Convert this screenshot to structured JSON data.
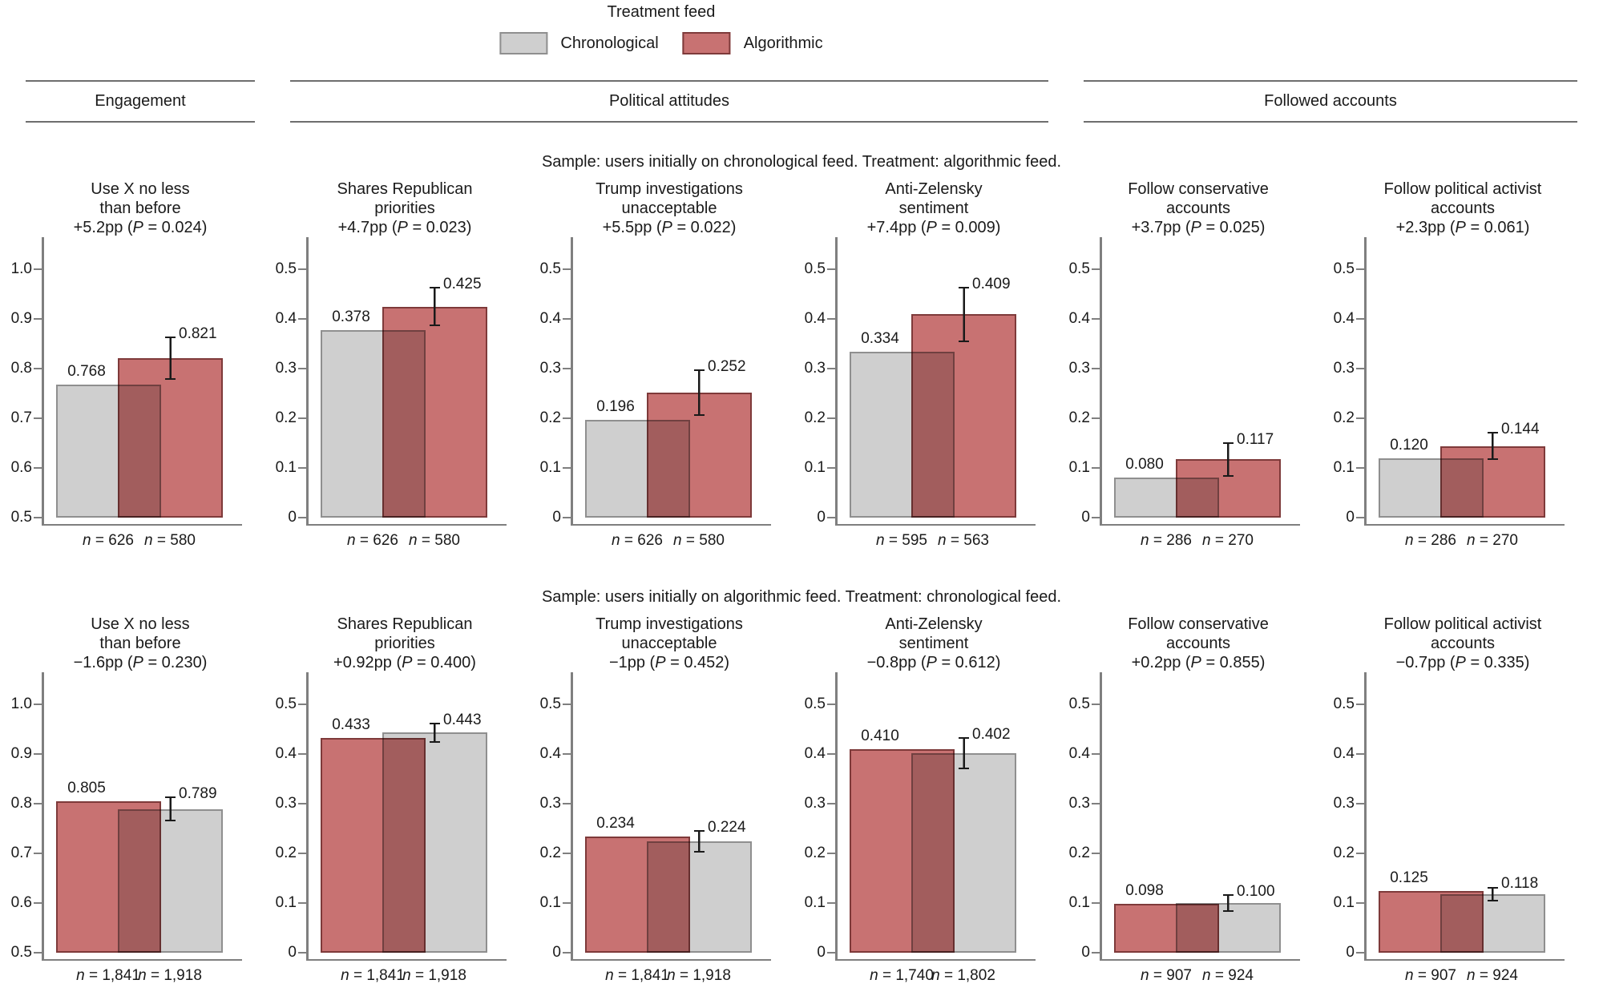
{
  "chart_data": {
    "type": "bar",
    "style": "grouped overlapping bars with error bar on treatment bar",
    "legend": {
      "title": "Treatment feed",
      "items": [
        {
          "key": "chronological",
          "label": "Chronological",
          "color": "#cfcfcf",
          "border": "#8f8f8f"
        },
        {
          "key": "algorithmic",
          "label": "Algorithmic",
          "color": "#c87272",
          "border": "#7e3a3a"
        }
      ]
    },
    "group_headers": [
      {
        "label": "Engagement",
        "span": 1
      },
      {
        "label": "Political attitudes",
        "span": 3
      },
      {
        "label": "Followed accounts",
        "span": 2
      }
    ],
    "axis_color": "#7f7f7f",
    "rows": [
      {
        "caption": "Sample: users initially on chronological feed. Treatment: algorithmic feed.",
        "charts": [
          {
            "title_lines": [
              "Use X no less",
              "than before"
            ],
            "effect": {
              "pre": "+5.2pp (",
              "sym": "P",
              "rest": " = 0.024)"
            },
            "ylim": [
              0.5,
              1.0
            ],
            "yticks": [
              "1.0",
              "0.9",
              "0.8",
              "0.7",
              "0.6",
              "0.5"
            ],
            "bars": [
              {
                "group": "chronological",
                "value": 0.768,
                "label": "0.768",
                "n_sym": "n",
                "n_rest": " = 626"
              },
              {
                "group": "algorithmic",
                "value": 0.821,
                "label": "0.821",
                "ci": 0.043,
                "n_sym": "n",
                "n_rest": " = 580"
              }
            ]
          },
          {
            "title_lines": [
              "Shares Republican",
              "priorities"
            ],
            "effect": {
              "pre": "+4.7pp (",
              "sym": "P",
              "rest": " = 0.023)"
            },
            "ylim": [
              0,
              0.5
            ],
            "yticks": [
              "0.5",
              "0.4",
              "0.3",
              "0.2",
              "0.1",
              "0"
            ],
            "bars": [
              {
                "group": "chronological",
                "value": 0.378,
                "label": "0.378",
                "n_sym": "n",
                "n_rest": " = 626"
              },
              {
                "group": "algorithmic",
                "value": 0.425,
                "label": "0.425",
                "ci": 0.04,
                "n_sym": "n",
                "n_rest": " = 580"
              }
            ]
          },
          {
            "title_lines": [
              "Trump investigations",
              "unacceptable"
            ],
            "effect": {
              "pre": "+5.5pp (",
              "sym": "P",
              "rest": " = 0.022)"
            },
            "ylim": [
              0,
              0.5
            ],
            "yticks": [
              "0.5",
              "0.4",
              "0.3",
              "0.2",
              "0.1",
              "0"
            ],
            "bars": [
              {
                "group": "chronological",
                "value": 0.196,
                "label": "0.196",
                "n_sym": "n",
                "n_rest": " = 626"
              },
              {
                "group": "algorithmic",
                "value": 0.252,
                "label": "0.252",
                "ci": 0.047,
                "n_sym": "n",
                "n_rest": " = 580"
              }
            ]
          },
          {
            "title_lines": [
              "Anti-Zelensky",
              "sentiment"
            ],
            "effect": {
              "pre": "+7.4pp (",
              "sym": "P",
              "rest": " = 0.009)"
            },
            "ylim": [
              0,
              0.5
            ],
            "yticks": [
              "0.5",
              "0.4",
              "0.3",
              "0.2",
              "0.1",
              "0"
            ],
            "bars": [
              {
                "group": "chronological",
                "value": 0.334,
                "label": "0.334",
                "n_sym": "n",
                "n_rest": " = 595"
              },
              {
                "group": "algorithmic",
                "value": 0.409,
                "label": "0.409",
                "ci": 0.055,
                "n_sym": "n",
                "n_rest": " = 563"
              }
            ]
          },
          {
            "title_lines": [
              "Follow conservative",
              "accounts"
            ],
            "effect": {
              "pre": "+3.7pp (",
              "sym": "P",
              "rest": " = 0.025)"
            },
            "ylim": [
              0,
              0.5
            ],
            "yticks": [
              "0.5",
              "0.4",
              "0.3",
              "0.2",
              "0.1",
              "0"
            ],
            "bars": [
              {
                "group": "chronological",
                "value": 0.08,
                "label": "0.080",
                "n_sym": "n",
                "n_rest": " = 286"
              },
              {
                "group": "algorithmic",
                "value": 0.117,
                "label": "0.117",
                "ci": 0.034,
                "n_sym": "n",
                "n_rest": " = 270"
              }
            ]
          },
          {
            "title_lines": [
              "Follow political activist",
              "accounts"
            ],
            "effect": {
              "pre": "+2.3pp (",
              "sym": "P",
              "rest": " = 0.061)"
            },
            "ylim": [
              0,
              0.5
            ],
            "yticks": [
              "0.5",
              "0.4",
              "0.3",
              "0.2",
              "0.1",
              "0"
            ],
            "bars": [
              {
                "group": "chronological",
                "value": 0.12,
                "label": "0.120",
                "n_sym": "n",
                "n_rest": " = 286"
              },
              {
                "group": "algorithmic",
                "value": 0.144,
                "label": "0.144",
                "ci": 0.028,
                "n_sym": "n",
                "n_rest": " = 270"
              }
            ]
          }
        ]
      },
      {
        "caption": "Sample: users initially on algorithmic feed. Treatment: chronological feed.",
        "charts": [
          {
            "title_lines": [
              "Use X no less",
              "than before"
            ],
            "effect": {
              "pre": "−1.6pp (",
              "sym": "P",
              "rest": " = 0.230)"
            },
            "ylim": [
              0.5,
              1.0
            ],
            "yticks": [
              "1.0",
              "0.9",
              "0.8",
              "0.7",
              "0.6",
              "0.5"
            ],
            "bars": [
              {
                "group": "algorithmic",
                "value": 0.805,
                "label": "0.805",
                "n_sym": "n",
                "n_rest": " = 1,841"
              },
              {
                "group": "chronological",
                "value": 0.789,
                "label": "0.789",
                "ci": 0.025,
                "n_sym": "n",
                "n_rest": " = 1,918"
              }
            ]
          },
          {
            "title_lines": [
              "Shares Republican",
              "priorities"
            ],
            "effect": {
              "pre": "+0.92pp (",
              "sym": "P",
              "rest": " = 0.400)"
            },
            "ylim": [
              0,
              0.5
            ],
            "yticks": [
              "0.5",
              "0.4",
              "0.3",
              "0.2",
              "0.1",
              "0"
            ],
            "bars": [
              {
                "group": "algorithmic",
                "value": 0.433,
                "label": "0.433",
                "n_sym": "n",
                "n_rest": " = 1,841"
              },
              {
                "group": "chronological",
                "value": 0.443,
                "label": "0.443",
                "ci": 0.02,
                "n_sym": "n",
                "n_rest": " = 1,918"
              }
            ]
          },
          {
            "title_lines": [
              "Trump investigations",
              "unacceptable"
            ],
            "effect": {
              "pre": "−1pp (",
              "sym": "P",
              "rest": " = 0.452)"
            },
            "ylim": [
              0,
              0.5
            ],
            "yticks": [
              "0.5",
              "0.4",
              "0.3",
              "0.2",
              "0.1",
              "0"
            ],
            "bars": [
              {
                "group": "algorithmic",
                "value": 0.234,
                "label": "0.234",
                "n_sym": "n",
                "n_rest": " = 1,841"
              },
              {
                "group": "chronological",
                "value": 0.224,
                "label": "0.224",
                "ci": 0.023,
                "n_sym": "n",
                "n_rest": " = 1,918"
              }
            ]
          },
          {
            "title_lines": [
              "Anti-Zelensky",
              "sentiment"
            ],
            "effect": {
              "pre": "−0.8pp (",
              "sym": "P",
              "rest": " = 0.612)"
            },
            "ylim": [
              0,
              0.5
            ],
            "yticks": [
              "0.5",
              "0.4",
              "0.3",
              "0.2",
              "0.1",
              "0"
            ],
            "bars": [
              {
                "group": "algorithmic",
                "value": 0.41,
                "label": "0.410",
                "n_sym": "n",
                "n_rest": " = 1,740"
              },
              {
                "group": "chronological",
                "value": 0.402,
                "label": "0.402",
                "ci": 0.032,
                "n_sym": "n",
                "n_rest": " = 1,802"
              }
            ]
          },
          {
            "title_lines": [
              "Follow conservative",
              "accounts"
            ],
            "effect": {
              "pre": "+0.2pp (",
              "sym": "P",
              "rest": " = 0.855)"
            },
            "ylim": [
              0,
              0.5
            ],
            "yticks": [
              "0.5",
              "0.4",
              "0.3",
              "0.2",
              "0.1",
              "0"
            ],
            "bars": [
              {
                "group": "algorithmic",
                "value": 0.098,
                "label": "0.098",
                "n_sym": "n",
                "n_rest": " = 907"
              },
              {
                "group": "chronological",
                "value": 0.1,
                "label": "0.100",
                "ci": 0.018,
                "n_sym": "n",
                "n_rest": " = 924"
              }
            ]
          },
          {
            "title_lines": [
              "Follow political activist",
              "accounts"
            ],
            "effect": {
              "pre": "−0.7pp (",
              "sym": "P",
              "rest": " = 0.335)"
            },
            "ylim": [
              0,
              0.5
            ],
            "yticks": [
              "0.5",
              "0.4",
              "0.3",
              "0.2",
              "0.1",
              "0"
            ],
            "bars": [
              {
                "group": "algorithmic",
                "value": 0.125,
                "label": "0.125",
                "n_sym": "n",
                "n_rest": " = 907"
              },
              {
                "group": "chronological",
                "value": 0.118,
                "label": "0.118",
                "ci": 0.015,
                "n_sym": "n",
                "n_rest": " = 924"
              }
            ]
          }
        ]
      }
    ]
  }
}
